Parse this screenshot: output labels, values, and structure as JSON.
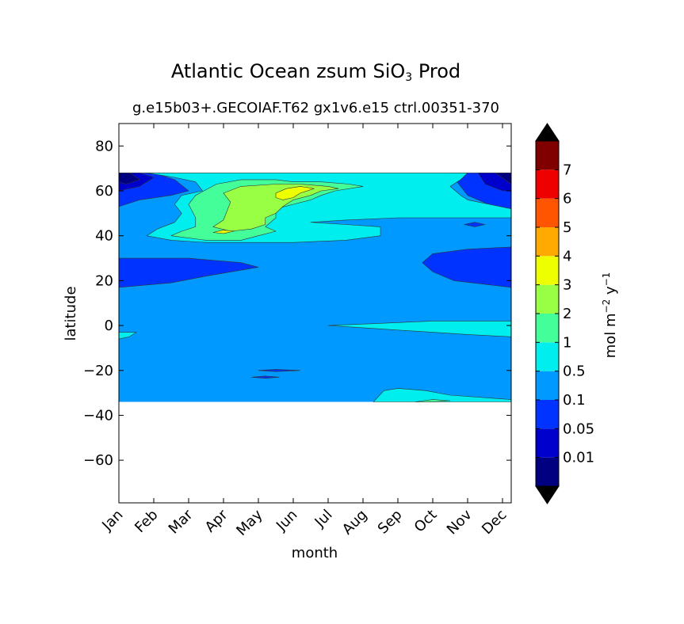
{
  "chart_data": {
    "type": "contour",
    "title": {
      "main": "Atlantic Ocean zsum SiO",
      "sub": "3",
      "suffix": " Prod"
    },
    "subtitle": "g.e15b03+.GECOIAF.T62 gx1v6.e15 ctrl.00351-370",
    "xlabel": "month",
    "ylabel": "latitude",
    "x_ticks": [
      "Jan",
      "Feb",
      "Mar",
      "Apr",
      "May",
      "Jun",
      "Jul",
      "Aug",
      "Sep",
      "Oct",
      "Nov",
      "Dec"
    ],
    "x_range": [
      0,
      11.25
    ],
    "y_ticks": [
      80,
      60,
      40,
      20,
      0,
      -20,
      -40,
      -60
    ],
    "y_range": [
      -79,
      90
    ],
    "data_lat_range": [
      -34,
      68
    ],
    "colorbar": {
      "label": "mol m",
      "label_exp1": "−2",
      "label_mid": " y",
      "label_exp2": "−1",
      "levels": [
        "0.01",
        "0.05",
        "0.1",
        "0.5",
        "1",
        "2",
        "3",
        "4",
        "5",
        "6",
        "7"
      ],
      "colors": [
        "#000080",
        "#0000cd",
        "#0033ff",
        "#0099ff",
        "#00eeee",
        "#44ff99",
        "#99ff44",
        "#eeff00",
        "#ffaa00",
        "#ff5500",
        "#ee0000",
        "#800000"
      ],
      "extend": "both",
      "extend_colors": [
        "#000000",
        "#000000"
      ]
    },
    "regions": [
      {
        "level_index": 3,
        "description": "background 0.1-0.5",
        "polygon": [
          [
            0,
            -34
          ],
          [
            11.25,
            -34
          ],
          [
            11.25,
            68
          ],
          [
            0,
            68
          ]
        ]
      },
      {
        "level_index": 2,
        "polygon": [
          [
            0,
            68
          ],
          [
            1,
            68
          ],
          [
            1.6,
            65
          ],
          [
            2,
            60
          ],
          [
            1.5,
            58
          ],
          [
            0.6,
            56
          ],
          [
            0,
            53
          ]
        ]
      },
      {
        "level_index": 1,
        "polygon": [
          [
            0,
            68
          ],
          [
            0.6,
            68
          ],
          [
            1,
            66
          ],
          [
            0.6,
            62
          ],
          [
            0,
            60
          ]
        ]
      },
      {
        "level_index": 0,
        "polygon": [
          [
            0,
            68
          ],
          [
            0.3,
            68
          ],
          [
            0.6,
            65
          ],
          [
            0.2,
            63
          ],
          [
            0,
            64
          ]
        ]
      },
      {
        "level_index": 2,
        "polygon": [
          [
            0,
            30
          ],
          [
            2,
            30
          ],
          [
            3.5,
            28
          ],
          [
            4,
            26
          ],
          [
            2.5,
            22
          ],
          [
            1.5,
            19
          ],
          [
            0,
            17
          ]
        ]
      },
      {
        "level_index": 2,
        "polygon": [
          [
            11.25,
            68
          ],
          [
            9.5,
            68
          ],
          [
            9.8,
            62
          ],
          [
            10,
            58
          ],
          [
            10.6,
            54
          ],
          [
            11.25,
            50
          ]
        ]
      },
      {
        "level_index": 1,
        "polygon": [
          [
            11.25,
            68
          ],
          [
            10.3,
            68
          ],
          [
            10.5,
            63
          ],
          [
            11,
            60
          ],
          [
            11.25,
            60
          ]
        ]
      },
      {
        "level_index": 0,
        "polygon": [
          [
            11.25,
            68
          ],
          [
            10.8,
            68
          ],
          [
            11.25,
            63
          ]
        ]
      },
      {
        "level_index": 2,
        "polygon": [
          [
            11.25,
            35
          ],
          [
            10,
            34
          ],
          [
            9,
            32
          ],
          [
            8.7,
            28
          ],
          [
            9,
            24
          ],
          [
            9.6,
            20
          ],
          [
            11.25,
            17
          ]
        ]
      },
      {
        "level_index": 4,
        "polygon": [
          [
            0.8,
            68
          ],
          [
            10,
            68
          ],
          [
            9.8,
            65
          ],
          [
            9.5,
            62
          ],
          [
            9.8,
            58
          ],
          [
            10,
            56
          ],
          [
            11.25,
            52
          ],
          [
            11.25,
            48
          ],
          [
            9.5,
            48
          ],
          [
            8,
            48
          ],
          [
            6.5,
            47
          ],
          [
            5.5,
            46
          ],
          [
            6.5,
            45
          ],
          [
            7.5,
            44
          ],
          [
            7.5,
            40
          ],
          [
            6.5,
            38
          ],
          [
            5,
            37
          ],
          [
            3.5,
            37
          ],
          [
            2.5,
            37
          ],
          [
            1.5,
            38
          ],
          [
            0.8,
            40
          ],
          [
            1.1,
            43
          ],
          [
            1.6,
            46
          ],
          [
            1.8,
            50
          ],
          [
            1.6,
            54
          ],
          [
            1.8,
            58
          ],
          [
            2.4,
            60
          ],
          [
            2.2,
            64
          ],
          [
            1.6,
            66
          ]
        ]
      },
      {
        "level_index": 5,
        "polygon": [
          [
            2.2,
            58
          ],
          [
            2.8,
            63
          ],
          [
            3.5,
            65
          ],
          [
            4.5,
            65
          ],
          [
            5,
            64
          ],
          [
            5.8,
            64
          ],
          [
            6.6,
            63
          ],
          [
            7,
            62
          ],
          [
            6.2,
            60
          ],
          [
            5.8,
            58
          ],
          [
            5.5,
            56
          ],
          [
            5,
            54
          ],
          [
            4.5,
            52
          ],
          [
            4.5,
            48
          ],
          [
            4.2,
            44
          ],
          [
            4.5,
            42
          ],
          [
            4,
            40
          ],
          [
            3.5,
            38
          ],
          [
            2.5,
            38
          ],
          [
            1.5,
            40
          ],
          [
            1.8,
            42
          ],
          [
            2.2,
            44
          ],
          [
            2.2,
            48
          ],
          [
            2,
            54
          ]
        ]
      },
      {
        "level_index": 6,
        "polygon": [
          [
            3,
            59
          ],
          [
            3.5,
            62
          ],
          [
            4.5,
            63
          ],
          [
            5.2,
            63
          ],
          [
            6,
            62
          ],
          [
            6.3,
            61
          ],
          [
            5.8,
            60
          ],
          [
            5.5,
            58
          ],
          [
            5,
            56
          ],
          [
            4.7,
            53
          ],
          [
            4.5,
            50
          ],
          [
            4.2,
            48
          ],
          [
            4.2,
            45
          ],
          [
            3.8,
            43
          ],
          [
            3.2,
            42
          ],
          [
            2.7,
            44
          ],
          [
            3,
            47
          ],
          [
            3.1,
            51
          ],
          [
            3.2,
            55
          ]
        ]
      },
      {
        "level_index": 7,
        "polygon": [
          [
            4.5,
            59
          ],
          [
            4.8,
            61
          ],
          [
            5.2,
            62
          ],
          [
            5.6,
            61
          ],
          [
            5.2,
            59
          ],
          [
            5,
            57
          ],
          [
            4.7,
            56
          ],
          [
            4.5,
            57
          ]
        ]
      },
      {
        "level_index": 7,
        "polygon": [
          [
            2.7,
            41.5
          ],
          [
            3,
            42.5
          ],
          [
            3.3,
            42
          ],
          [
            3,
            41
          ]
        ]
      },
      {
        "level_index": 4,
        "polygon": [
          [
            6,
            0
          ],
          [
            7.5,
            1
          ],
          [
            9,
            2
          ],
          [
            11.25,
            2
          ],
          [
            11.25,
            -5
          ],
          [
            10,
            -4
          ],
          [
            9,
            -3
          ],
          [
            8,
            -2
          ],
          [
            7,
            -1
          ]
        ]
      },
      {
        "level_index": 4,
        "polygon": [
          [
            0,
            -3
          ],
          [
            0.5,
            -3
          ],
          [
            0.3,
            -5
          ],
          [
            0,
            -6
          ]
        ]
      },
      {
        "level_index": 4,
        "polygon": [
          [
            7.3,
            -34
          ],
          [
            7.6,
            -29
          ],
          [
            8,
            -28
          ],
          [
            8.8,
            -29
          ],
          [
            9.5,
            -31
          ],
          [
            11.25,
            -33
          ],
          [
            11.25,
            -34
          ]
        ]
      },
      {
        "level_index": 5,
        "polygon": [
          [
            8.5,
            -34
          ],
          [
            9,
            -33
          ],
          [
            9.5,
            -33.5
          ],
          [
            9,
            -34
          ]
        ]
      },
      {
        "level_index": 2,
        "polygon": [
          [
            4,
            -20
          ],
          [
            4.5,
            -19.5
          ],
          [
            5.2,
            -20
          ],
          [
            4.5,
            -20.5
          ]
        ]
      },
      {
        "level_index": 2,
        "polygon": [
          [
            3.8,
            -23
          ],
          [
            4.2,
            -22.5
          ],
          [
            4.6,
            -23
          ],
          [
            4.2,
            -23.5
          ]
        ]
      },
      {
        "level_index": 2,
        "polygon": [
          [
            9.9,
            45
          ],
          [
            10.2,
            46
          ],
          [
            10.5,
            45
          ],
          [
            10.2,
            44
          ]
        ]
      }
    ]
  }
}
